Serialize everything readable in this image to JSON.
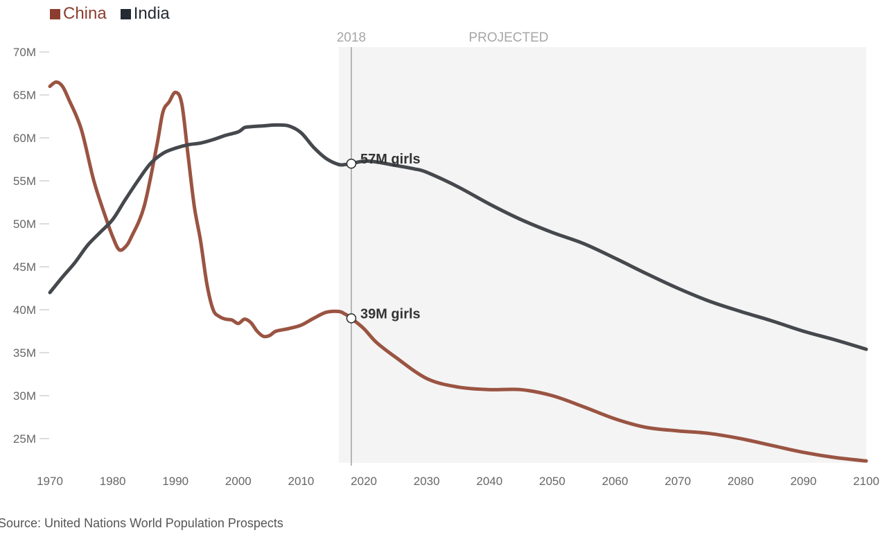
{
  "chart_data": {
    "type": "line",
    "title": "",
    "xlabel": "",
    "ylabel": "",
    "xlim": [
      1970,
      2100
    ],
    "ylim": [
      22,
      70
    ],
    "x_ticks": [
      "1970",
      "1980",
      "1990",
      "2000",
      "2010",
      "2020",
      "2030",
      "2040",
      "2050",
      "2060",
      "2070",
      "2080",
      "2090",
      "2100"
    ],
    "y_ticks": [
      "25M",
      "30M",
      "35M",
      "40M",
      "45M",
      "50M",
      "55M",
      "60M",
      "65M",
      "70M"
    ],
    "projection": {
      "start": 2016,
      "end": 2100,
      "label": "PROJECTED"
    },
    "marker": {
      "year": 2018,
      "label": "2018"
    },
    "series": [
      {
        "name": "China",
        "color": "#9a5442",
        "swatch": "#8b3e2f",
        "x": [
          1970,
          1971,
          1972,
          1973,
          1975,
          1977,
          1979,
          1980,
          1981,
          1982,
          1983,
          1985,
          1987,
          1988,
          1989,
          1990,
          1991,
          1992,
          1993,
          1994,
          1995,
          1996,
          1997,
          1998,
          1999,
          2000,
          2001,
          2002,
          2003,
          2004,
          2005,
          2006,
          2008,
          2010,
          2012,
          2014,
          2016,
          2017,
          2018,
          2020,
          2022,
          2025,
          2030,
          2035,
          2040,
          2045,
          2050,
          2055,
          2060,
          2065,
          2070,
          2075,
          2080,
          2085,
          2090,
          2095,
          2100
        ],
        "values": [
          66.0,
          66.5,
          66.0,
          64.5,
          61.0,
          55.0,
          50.5,
          48.5,
          47.0,
          47.3,
          48.5,
          52.0,
          59.0,
          63.0,
          64.2,
          65.3,
          64.0,
          58.0,
          52.0,
          48.0,
          43.0,
          40.0,
          39.2,
          38.9,
          38.8,
          38.4,
          38.9,
          38.5,
          37.5,
          36.9,
          37.0,
          37.5,
          37.8,
          38.2,
          39.0,
          39.7,
          39.8,
          39.5,
          39.0,
          37.8,
          36.2,
          34.5,
          32.0,
          31.0,
          30.7,
          30.7,
          30.0,
          28.7,
          27.3,
          26.3,
          25.9,
          25.6,
          25.0,
          24.2,
          23.4,
          22.8,
          22.4
        ]
      },
      {
        "name": "India",
        "color": "#45484c",
        "swatch": "#232a33",
        "x": [
          1970,
          1972,
          1974,
          1976,
          1978,
          1980,
          1982,
          1984,
          1986,
          1988,
          1990,
          1992,
          1994,
          1996,
          1998,
          2000,
          2001,
          2002,
          2004,
          2006,
          2008,
          2010,
          2012,
          2014,
          2016,
          2017,
          2018,
          2020,
          2022,
          2025,
          2028,
          2030,
          2035,
          2040,
          2045,
          2050,
          2055,
          2060,
          2065,
          2070,
          2075,
          2080,
          2085,
          2090,
          2095,
          2100
        ],
        "values": [
          42.0,
          43.8,
          45.5,
          47.5,
          49.0,
          50.5,
          52.8,
          55.0,
          57.0,
          58.2,
          58.8,
          59.2,
          59.4,
          59.8,
          60.3,
          60.7,
          61.2,
          61.3,
          61.4,
          61.5,
          61.4,
          60.6,
          58.9,
          57.6,
          56.9,
          56.9,
          57.0,
          57.3,
          57.2,
          56.8,
          56.4,
          56.0,
          54.3,
          52.3,
          50.5,
          49.0,
          47.7,
          46.0,
          44.2,
          42.5,
          41.0,
          39.8,
          38.7,
          37.5,
          36.5,
          35.4
        ]
      }
    ],
    "annotations": [
      {
        "series": "India",
        "year": 2018,
        "value": 57,
        "text": "57M girls"
      },
      {
        "series": "China",
        "year": 2018,
        "value": 39,
        "text": "39M girls"
      }
    ]
  },
  "source": "Source: United Nations World Population Prospects"
}
